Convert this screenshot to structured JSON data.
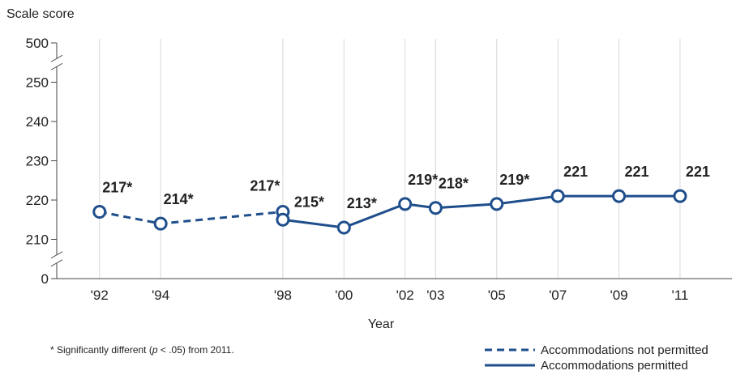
{
  "chart_data": {
    "type": "line",
    "title": "Scale score",
    "x_label": "Year",
    "footnote": {
      "before": "* Significantly different (",
      "italic": "p",
      "after": " < .05) from 2011."
    },
    "xlim": [
      1990.6,
      2012.7
    ],
    "xticks": [
      {
        "value": 1992,
        "label": "'92"
      },
      {
        "value": 1994,
        "label": "'94"
      },
      {
        "value": 1998,
        "label": "'98"
      },
      {
        "value": 2000,
        "label": "'00"
      },
      {
        "value": 2002,
        "label": "'02"
      },
      {
        "value": 2003,
        "label": "'03"
      },
      {
        "value": 2005,
        "label": "'05"
      },
      {
        "value": 2007,
        "label": "'07"
      },
      {
        "value": 2009,
        "label": "'09"
      },
      {
        "value": 2011,
        "label": "'11"
      }
    ],
    "ylim": [
      0,
      500
    ],
    "yticks": [
      0,
      210,
      220,
      230,
      240,
      250,
      500
    ],
    "y_broken": true,
    "grid": "x",
    "legend": "bottom-right",
    "series": [
      {
        "name": "Accommodations not permitted",
        "color": "#1f4e8c",
        "dash": true,
        "x": [
          1992,
          1994,
          1998
        ],
        "values": [
          217,
          214,
          217
        ],
        "value_labels": [
          "217*",
          "214*",
          "217*"
        ]
      },
      {
        "name": "Accommodations permitted",
        "color": "#1f4e8c",
        "dash": false,
        "x": [
          1998,
          2000,
          2002,
          2003,
          2005,
          2007,
          2009,
          2011
        ],
        "values": [
          215,
          213,
          219,
          218,
          219,
          221,
          221,
          221
        ],
        "value_labels": [
          "215*",
          "213*",
          "219*",
          "218*",
          "219*",
          "221",
          "221",
          "221"
        ]
      }
    ]
  }
}
